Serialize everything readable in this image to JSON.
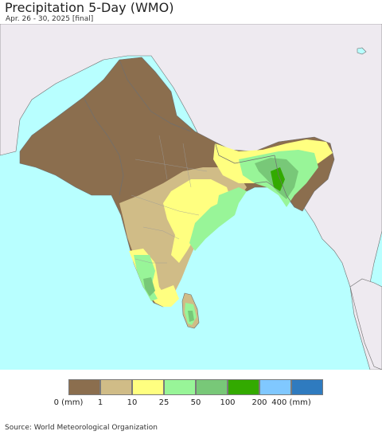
{
  "header": {
    "title": "Precipitation 5-Day (WMO)",
    "subtitle": "Apr. 26 - 30, 2025 [final]"
  },
  "legend": {
    "colors": [
      "#8b6e4e",
      "#d0bc87",
      "#ffff80",
      "#98f598",
      "#78c878",
      "#33aa00",
      "#80c8ff",
      "#2f7bbf"
    ],
    "labels": [
      "0 (mm)",
      "1",
      "10",
      "25",
      "50",
      "100",
      "200",
      "400 (mm)"
    ]
  },
  "map_colors": {
    "ocean": "#b8ffff",
    "land_outside": "#eeeaf0",
    "dry": "#8b6e4e",
    "trace": "#d0bc87",
    "light": "#ffff80",
    "moderate": "#98f598",
    "heavy": "#78c878",
    "very_heavy": "#33aa00",
    "border": "#6f6f6f"
  },
  "footer": {
    "source": "Source: World Meteorological Organization"
  }
}
